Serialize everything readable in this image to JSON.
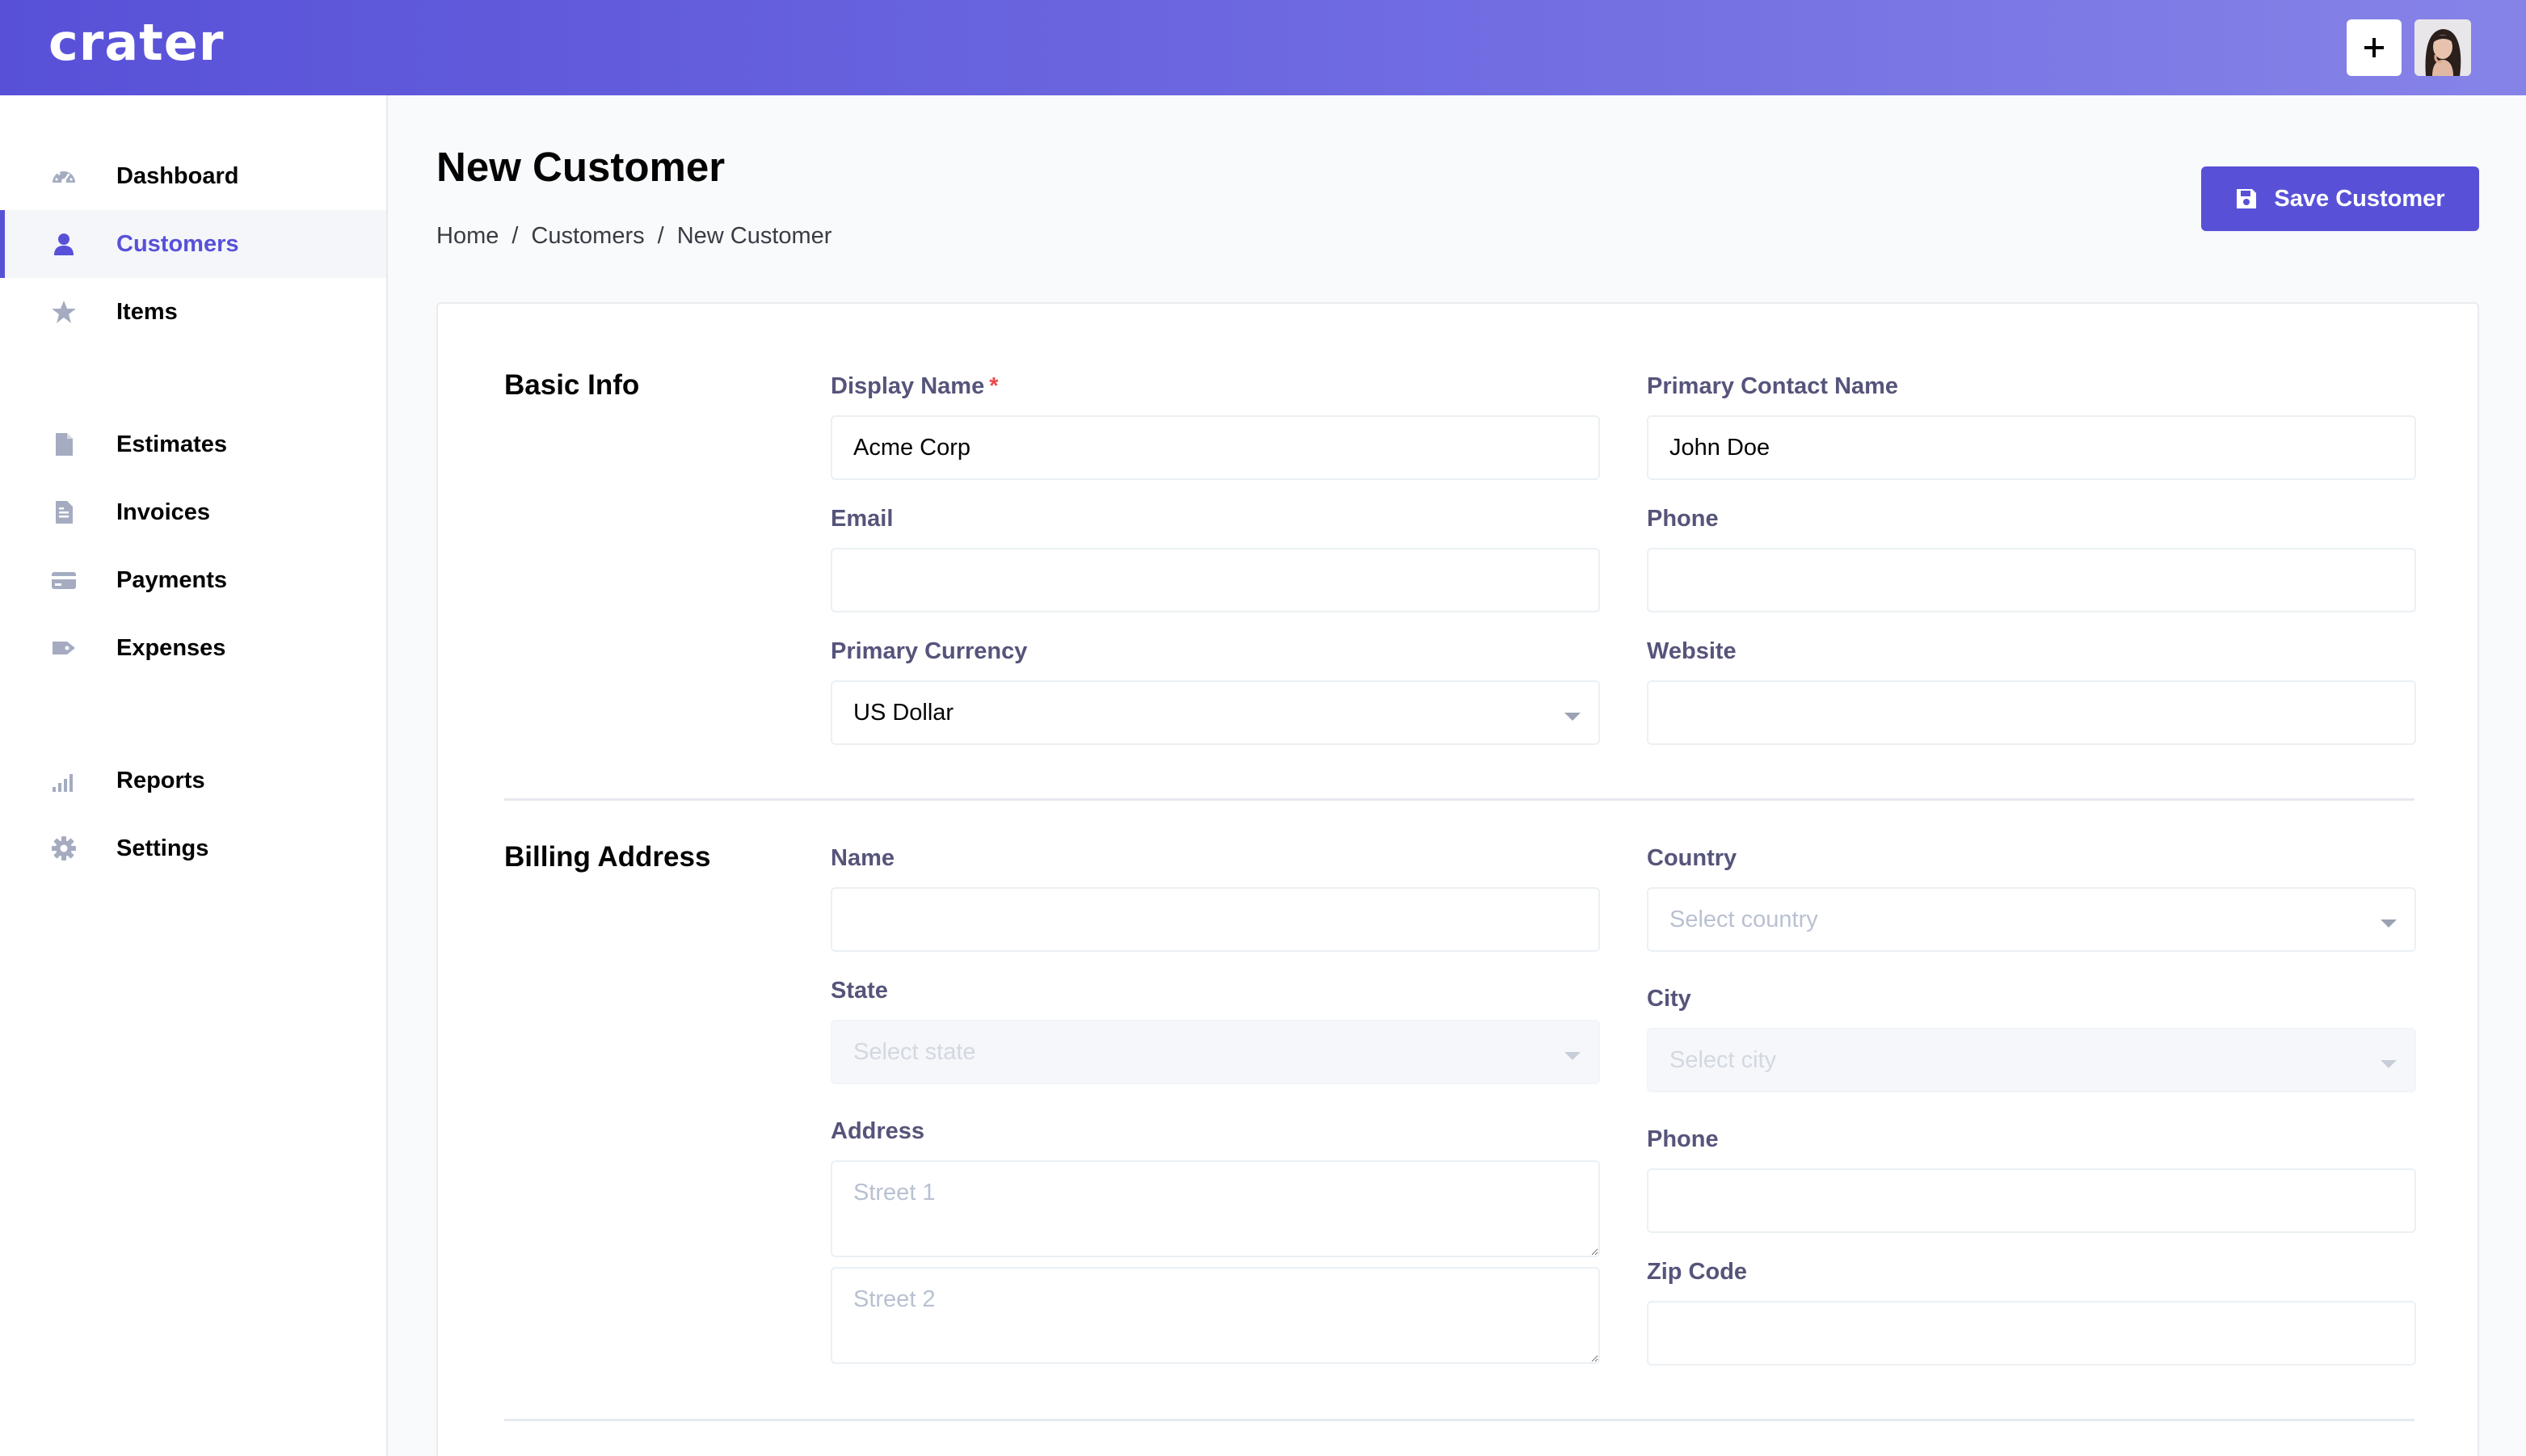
{
  "app": {
    "logo_text": "crater"
  },
  "header": {
    "quick_add_icon": "plus-icon",
    "avatar_icon": "user-avatar"
  },
  "sidebar": {
    "items": [
      {
        "label": "Dashboard",
        "icon": "dashboard-icon",
        "active": false
      },
      {
        "label": "Customers",
        "icon": "user-icon",
        "active": true
      },
      {
        "label": "Items",
        "icon": "star-icon",
        "active": false
      },
      {
        "label": "Estimates",
        "icon": "document-icon",
        "active": false
      },
      {
        "label": "Invoices",
        "icon": "invoice-icon",
        "active": false
      },
      {
        "label": "Payments",
        "icon": "credit-card-icon",
        "active": false
      },
      {
        "label": "Expenses",
        "icon": "tag-icon",
        "active": false
      },
      {
        "label": "Reports",
        "icon": "signal-bars-icon",
        "active": false
      },
      {
        "label": "Settings",
        "icon": "gear-icon",
        "active": false
      }
    ]
  },
  "page": {
    "title": "New Customer",
    "breadcrumb": [
      "Home",
      "Customers",
      "New Customer"
    ],
    "breadcrumb_separator": "/",
    "save_label": "Save Customer",
    "save_icon": "save-icon"
  },
  "basic_info": {
    "title": "Basic Info",
    "display_name_label": "Display Name",
    "required_marker": "*",
    "display_name_value": "Acme Corp",
    "primary_contact_label": "Primary Contact Name",
    "primary_contact_value": "John Doe",
    "email_label": "Email",
    "email_value": "",
    "phone_label": "Phone",
    "phone_value": "",
    "currency_label": "Primary Currency",
    "currency_value": "US Dollar",
    "website_label": "Website",
    "website_value": ""
  },
  "billing": {
    "title": "Billing Address",
    "name_label": "Name",
    "name_value": "",
    "country_label": "Country",
    "country_placeholder": "Select country",
    "state_label": "State",
    "state_placeholder": "Select state",
    "city_label": "City",
    "city_placeholder": "Select city",
    "address_label": "Address",
    "street1_placeholder": "Street 1",
    "street2_placeholder": "Street 2",
    "phone_label": "Phone",
    "phone_value": "",
    "zip_label": "Zip Code",
    "zip_value": ""
  },
  "colors": {
    "primary": "#5851d8",
    "label": "#55547a",
    "required": "#f04747",
    "placeholder": "#b9c1d1"
  }
}
